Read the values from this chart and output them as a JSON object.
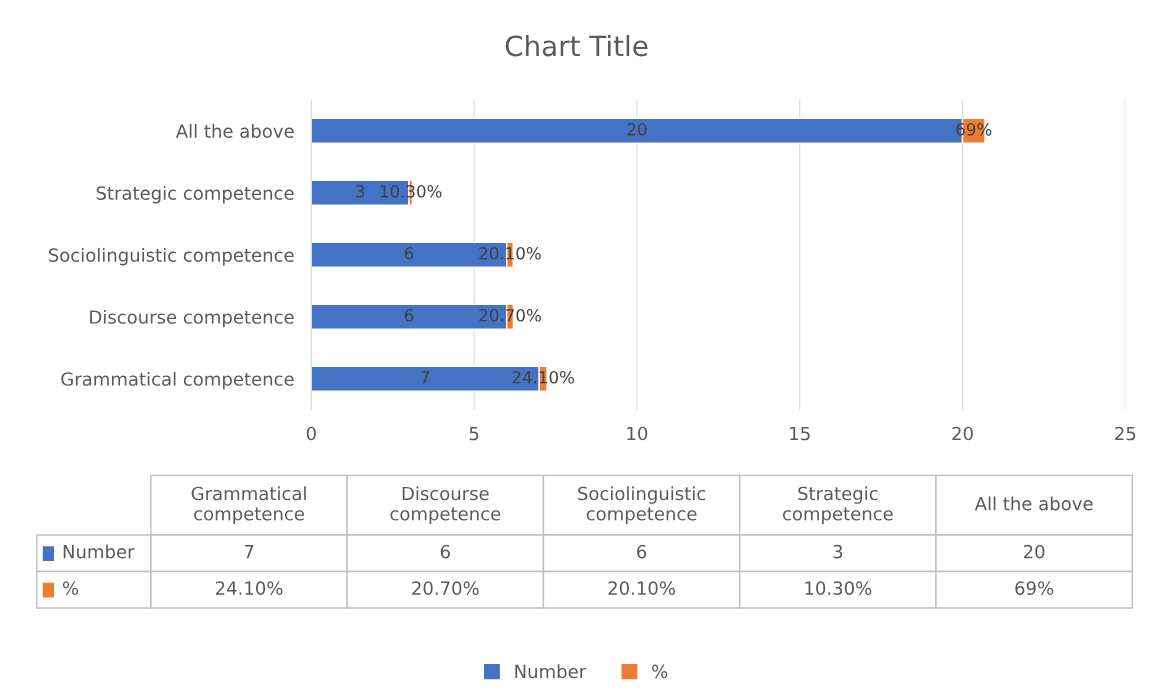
{
  "chart_data": {
    "type": "bar",
    "orientation": "horizontal",
    "stacked": true,
    "title": "Chart Title",
    "categories": [
      "All the above",
      "Strategic competence",
      "Sociolinguistic competence",
      "Discourse competence",
      "Grammatical competence"
    ],
    "series": [
      {
        "name": "Number",
        "color": "#4472c4",
        "values": [
          20,
          3,
          6,
          6,
          7
        ],
        "value_labels": [
          "20",
          "3",
          "6",
          "6",
          "7"
        ]
      },
      {
        "name": "%",
        "color": "#ed7d31",
        "values": [
          0.69,
          0.103,
          0.201,
          0.207,
          0.241
        ],
        "value_labels": [
          "69%",
          "10.30%",
          "20.10%",
          "20.70%",
          "24.10%"
        ]
      }
    ],
    "xlim": [
      0,
      25
    ],
    "xticks": [
      0,
      5,
      10,
      15,
      20,
      25
    ],
    "grid": "x",
    "legend": "bottom"
  }
}
